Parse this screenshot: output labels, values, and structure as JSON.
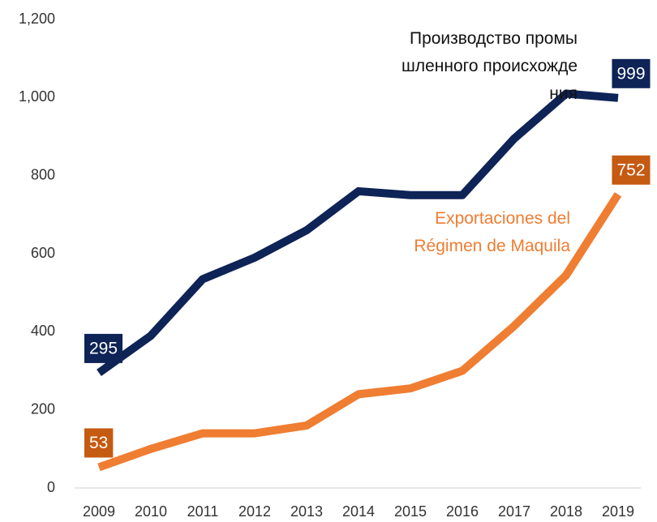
{
  "chart_data": {
    "type": "line",
    "categories": [
      "2009",
      "2010",
      "2011",
      "2012",
      "2013",
      "2014",
      "2015",
      "2016",
      "2017",
      "2018",
      "2019"
    ],
    "series": [
      {
        "name": "Производство промы\nшленного происхожде\nния",
        "color": "#0e2356",
        "label_color": "#0e2356",
        "values": [
          295,
          390,
          535,
          590,
          660,
          760,
          750,
          750,
          895,
          1010,
          999
        ]
      },
      {
        "name": "Exportaciones del\nRégimen de Maquila",
        "color": "#ef7d32",
        "label_color": "#c55a11",
        "values": [
          53,
          100,
          140,
          140,
          160,
          240,
          255,
          300,
          415,
          545,
          752
        ]
      }
    ],
    "ylim": [
      0,
      1200
    ],
    "yticks": [
      0,
      200,
      400,
      600,
      800,
      {
        "value": 1000,
        "label": "1,000"
      },
      {
        "value": 1200,
        "label": "1,200"
      }
    ],
    "grid": false
  }
}
